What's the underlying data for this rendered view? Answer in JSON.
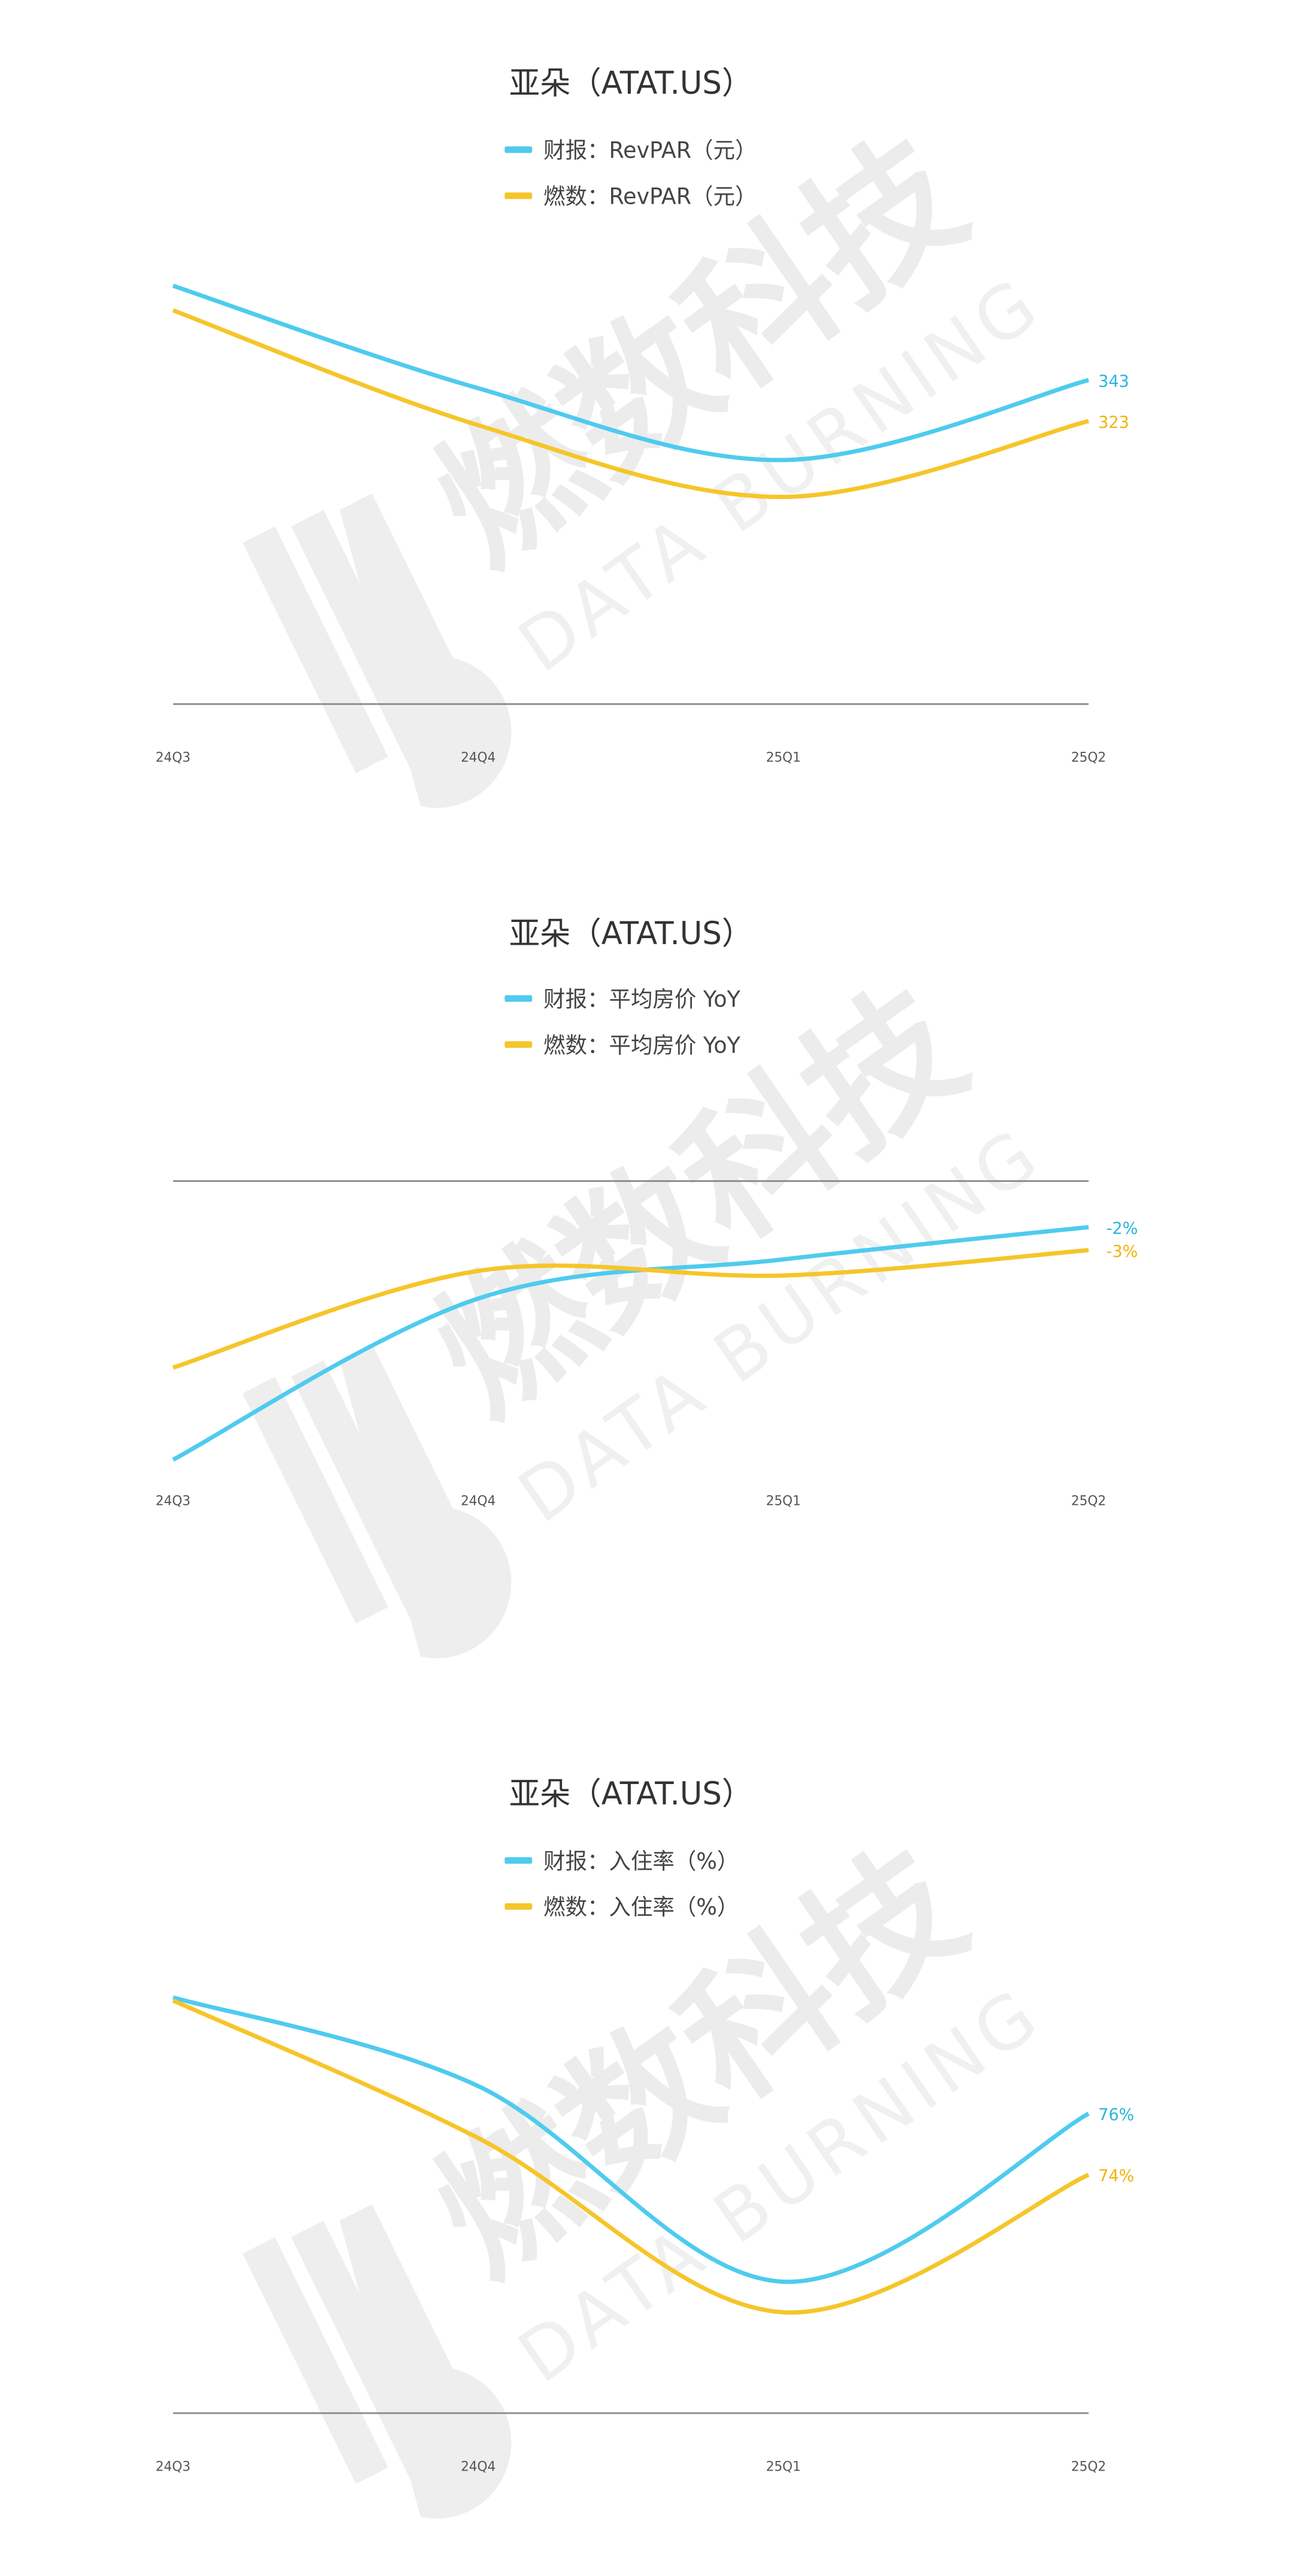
{
  "watermark": {
    "brand": "燃数科技",
    "tagline": "DATA BURNING"
  },
  "chart_data": [
    {
      "type": "line",
      "title": "亚朵（ATAT.US）",
      "categories": [
        "24Q3",
        "24Q4",
        "25Q1",
        "25Q2"
      ],
      "ylim": [
        185,
        400
      ],
      "series": [
        {
          "name": "财报：RevPAR（元）",
          "color": "#4fcbee",
          "label_color": "#2ab4dd",
          "values": [
            389,
            339,
            304,
            343
          ]
        },
        {
          "name": "燃数：RevPAR（元）",
          "color": "#f6c52a",
          "label_color": "#efb40c",
          "values": [
            377,
            321,
            286,
            323
          ]
        }
      ]
    },
    {
      "type": "line",
      "title": "亚朵（ATAT.US）",
      "categories": [
        "24Q3",
        "24Q4",
        "25Q1",
        "25Q2"
      ],
      "ylim": [
        -13,
        0
      ],
      "series": [
        {
          "name": "财报：平均房价 YoY",
          "color": "#4fcbee",
          "label_color": "#2ab4dd",
          "values": [
            -12.1,
            -5.1,
            -3.4,
            -2
          ],
          "value_labels": [
            null,
            null,
            null,
            "-2%"
          ]
        },
        {
          "name": "燃数：平均房价 YoY",
          "color": "#f6c52a",
          "label_color": "#efb40c",
          "values": [
            -8.1,
            -3.9,
            -4.1,
            -3
          ],
          "value_labels": [
            null,
            null,
            null,
            "-3%"
          ]
        }
      ]
    },
    {
      "type": "line",
      "title": "亚朵（ATAT.US）",
      "categories": [
        "24Q3",
        "24Q4",
        "25Q1",
        "25Q2"
      ],
      "ylim": [
        66.2,
        81
      ],
      "series": [
        {
          "name": "财报：入住率（%）",
          "color": "#4fcbee",
          "label_color": "#2ab4dd",
          "values": [
            79.8,
            76.9,
            70.5,
            76
          ],
          "value_labels": [
            null,
            null,
            null,
            "76%"
          ]
        },
        {
          "name": "燃数：入住率（%）",
          "color": "#f6c52a",
          "label_color": "#efb40c",
          "values": [
            79.7,
            75.2,
            69.5,
            74
          ],
          "value_labels": [
            null,
            null,
            null,
            "74%"
          ]
        }
      ]
    }
  ]
}
